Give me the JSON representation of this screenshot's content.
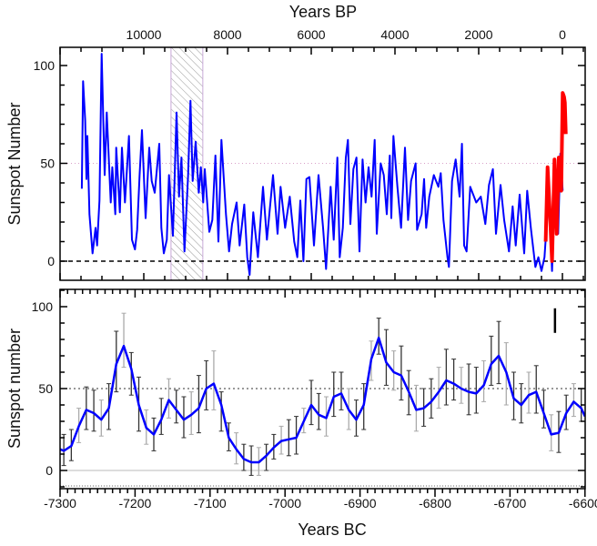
{
  "chart_data": [
    {
      "type": "line",
      "xlabel": "Years BP",
      "ylabel": "Sunspot Number",
      "xlim": [
        12000,
        -540
      ],
      "ylim": [
        -10,
        109
      ],
      "x_axis_reversed": true,
      "xticks": [
        10000,
        8000,
        6000,
        4000,
        2000,
        0
      ],
      "yticks": [
        0,
        50,
        100
      ],
      "reference_lines": [
        {
          "y": 50,
          "style": "dotted",
          "color": "#d9a0c8"
        },
        {
          "y": 0,
          "style": "dashed",
          "color": "#000000"
        }
      ],
      "shaded_interval": {
        "x": [
          9350,
          8590
        ],
        "pattern": "hatched",
        "color": "#888888"
      },
      "series": [
        {
          "color": "#0000ff",
          "x": [
            11480,
            11450,
            11400,
            11369,
            11347,
            11297,
            11224,
            11152,
            11116,
            11058,
            11007,
            10934,
            10884,
            10790,
            10753,
            10681,
            10659,
            10572,
            10521,
            10449,
            10355,
            10282,
            10210,
            10159,
            10101,
            10043,
            9956,
            9869,
            9811,
            9739,
            9630,
            9580,
            9521,
            9449,
            9398,
            9304,
            9217,
            9159,
            9101,
            9029,
            8942,
            8884,
            8833,
            8761,
            8688,
            8637,
            8580,
            8543,
            8435,
            8362,
            8290,
            8217,
            8145,
            8036,
            7964,
            7891,
            7782,
            7710,
            7601,
            7529,
            7471,
            7384,
            7275,
            7152,
            7058,
            6913,
            6804,
            6732,
            6623,
            6514,
            6406,
            6333,
            6261,
            6188,
            6116,
            6043,
            5935,
            5826,
            5717,
            5645,
            5536,
            5464,
            5377,
            5319,
            5246,
            5174,
            5123,
            5065,
            4993,
            4920,
            4848,
            4775,
            4703,
            4630,
            4558,
            4485,
            4435,
            4341,
            4268,
            4196,
            4123,
            4087,
            4036,
            3942,
            3855,
            3761,
            3688,
            3616,
            3507,
            3471,
            3362,
            3304,
            3254,
            3181,
            3072,
            2964,
            2906,
            2841,
            2746,
            2710,
            2638,
            2551,
            2457,
            2399,
            2348,
            2290,
            2203,
            2058,
            1949,
            1841,
            1754,
            1660,
            1587,
            1478,
            1391,
            1276,
            1189,
            1116,
            1022,
            913,
            841,
            754,
            645,
            573,
            500,
            428,
            341,
            283,
            247,
            174,
            102,
            51,
            -7
          ],
          "y": [
            37,
            92,
            72,
            42,
            64,
            24,
            4,
            17,
            8,
            31,
            106,
            44,
            76,
            30,
            48,
            24,
            58,
            25,
            58,
            30,
            64,
            11,
            6,
            16,
            44,
            67,
            22,
            58,
            41,
            35,
            60,
            17,
            4,
            11,
            44,
            13,
            76,
            33,
            53,
            5,
            44,
            82,
            41,
            61,
            35,
            48,
            30,
            47,
            15,
            21,
            54,
            10,
            62,
            24,
            5,
            19,
            30,
            8,
            29,
            2,
            -7,
            25,
            2,
            38,
            11,
            44,
            14,
            38,
            17,
            33,
            10,
            2,
            31,
            0,
            42,
            43,
            8,
            44,
            17,
            -4,
            38,
            11,
            53,
            2,
            17,
            53,
            62,
            19,
            47,
            53,
            5,
            52,
            30,
            48,
            33,
            62,
            14,
            50,
            44,
            24,
            54,
            22,
            64,
            38,
            17,
            58,
            21,
            41,
            50,
            16,
            24,
            42,
            17,
            33,
            44,
            38,
            45,
            21,
            2,
            -3,
            41,
            52,
            33,
            60,
            8,
            5,
            38,
            30,
            33,
            19,
            39,
            47,
            14,
            39,
            21,
            5,
            28,
            8,
            34,
            4,
            36,
            17,
            -3,
            2,
            -5,
            2,
            30,
            14,
            -5,
            45,
            14,
            55,
            36
          ]
        },
        {
          "color": "#ff0000",
          "x": [
            400,
            355,
            283,
            247,
            189,
            138,
            87,
            29,
            -7,
            -40,
            -58,
            -80
          ],
          "y": [
            10,
            48,
            17,
            0,
            52,
            14,
            53,
            36,
            86,
            84,
            81,
            65
          ]
        }
      ]
    },
    {
      "type": "line",
      "xlabel": "Years BC",
      "ylabel": "Sunspot number",
      "xlim": [
        -7300,
        -6600
      ],
      "ylim": [
        -11,
        110
      ],
      "xticks": [
        -7300,
        -7200,
        -7100,
        -7000,
        -6900,
        -6800,
        -6700,
        -6600
      ],
      "yticks": [
        0,
        50,
        100
      ],
      "reference_lines": [
        {
          "y": 50,
          "style": "dotted",
          "color": "#333333"
        },
        {
          "y": 0,
          "style": "solid",
          "color": "#bbbbbb"
        }
      ],
      "error_bar_marker": {
        "x": -6640,
        "y": [
          84,
          99
        ]
      },
      "series": [
        {
          "color": "#0000ff",
          "x": [
            -7300,
            -7295,
            -7285,
            -7275,
            -7265,
            -7255,
            -7245,
            -7235,
            -7225,
            -7215,
            -7205,
            -7195,
            -7185,
            -7175,
            -7165,
            -7155,
            -7145,
            -7135,
            -7125,
            -7115,
            -7105,
            -7095,
            -7085,
            -7075,
            -7065,
            -7055,
            -7045,
            -7035,
            -7025,
            -7015,
            -7005,
            -6995,
            -6985,
            -6975,
            -6965,
            -6955,
            -6945,
            -6935,
            -6925,
            -6915,
            -6905,
            -6895,
            -6885,
            -6875,
            -6865,
            -6855,
            -6845,
            -6835,
            -6825,
            -6815,
            -6805,
            -6795,
            -6785,
            -6775,
            -6765,
            -6755,
            -6745,
            -6735,
            -6725,
            -6715,
            -6705,
            -6695,
            -6685,
            -6675,
            -6665,
            -6655,
            -6645,
            -6635,
            -6625,
            -6615,
            -6605,
            -6600
          ],
          "y": [
            13,
            12,
            15,
            27,
            37,
            35,
            31,
            38,
            65,
            76,
            62,
            40,
            26,
            22,
            31,
            43,
            37,
            31,
            34,
            38,
            50,
            53,
            40,
            20,
            13,
            7,
            5,
            5,
            9,
            14,
            18,
            19,
            20,
            30,
            40,
            34,
            32,
            45,
            47,
            37,
            31,
            40,
            68,
            81,
            66,
            60,
            58,
            48,
            37,
            38,
            42,
            48,
            55,
            53,
            50,
            48,
            47,
            52,
            65,
            70,
            60,
            44,
            40,
            46,
            48,
            35,
            22,
            23,
            35,
            42,
            38,
            33
          ],
          "error_low": [
            null,
            3,
            6,
            17,
            25,
            24,
            21,
            25,
            48,
            63,
            46,
            24,
            16,
            12,
            22,
            32,
            29,
            20,
            22,
            23,
            37,
            37,
            24,
            12,
            4,
            0,
            -3,
            -3,
            0,
            7,
            10,
            9,
            10,
            23,
            28,
            25,
            21,
            33,
            37,
            25,
            21,
            25,
            55,
            71,
            52,
            49,
            43,
            34,
            24,
            27,
            32,
            38,
            40,
            43,
            41,
            34,
            35,
            42,
            52,
            53,
            40,
            31,
            29,
            35,
            35,
            26,
            12,
            11,
            25,
            33,
            30,
            null
          ],
          "error_high": [
            null,
            22,
            25,
            38,
            51,
            49,
            43,
            53,
            85,
            96,
            72,
            57,
            37,
            32,
            44,
            56,
            49,
            45,
            48,
            58,
            67,
            73,
            48,
            29,
            23,
            16,
            15,
            14,
            16,
            22,
            27,
            31,
            33,
            38,
            55,
            47,
            45,
            60,
            60,
            50,
            43,
            53,
            79,
            93,
            86,
            73,
            76,
            61,
            52,
            50,
            56,
            63,
            74,
            68,
            63,
            65,
            63,
            67,
            82,
            91,
            78,
            60,
            53,
            60,
            64,
            49,
            34,
            36,
            46,
            53,
            50,
            null
          ]
        }
      ]
    }
  ]
}
